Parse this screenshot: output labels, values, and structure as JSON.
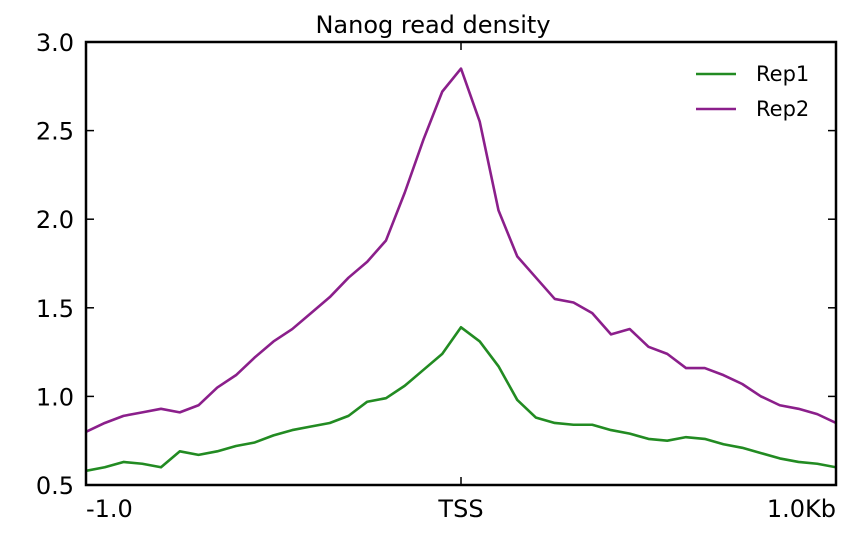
{
  "chart_data": {
    "type": "line",
    "title": "Nanog read density",
    "xlabel": "",
    "ylabel": "",
    "xlim": [
      -1.0,
      1.0
    ],
    "ylim": [
      0.5,
      3.0
    ],
    "x_ticks": [
      {
        "value": -1.0,
        "label": "-1.0"
      },
      {
        "value": 0.0,
        "label": "TSS"
      },
      {
        "value": 1.0,
        "label": "1.0Kb"
      }
    ],
    "y_ticks": [
      {
        "value": 0.5,
        "label": "0.5"
      },
      {
        "value": 1.0,
        "label": "1.0"
      },
      {
        "value": 1.5,
        "label": "1.5"
      },
      {
        "value": 2.0,
        "label": "2.0"
      },
      {
        "value": 2.5,
        "label": "2.5"
      },
      {
        "value": 3.0,
        "label": "3.0"
      }
    ],
    "grid": false,
    "legend_position": "top-right",
    "series": [
      {
        "name": "Rep1",
        "color": "#228b22",
        "x": [
          -1.0,
          -0.95,
          -0.9,
          -0.85,
          -0.8,
          -0.75,
          -0.7,
          -0.65,
          -0.6,
          -0.55,
          -0.5,
          -0.45,
          -0.4,
          -0.35,
          -0.3,
          -0.25,
          -0.2,
          -0.15,
          -0.1,
          -0.05,
          0.0,
          0.05,
          0.1,
          0.15,
          0.2,
          0.25,
          0.3,
          0.35,
          0.4,
          0.45,
          0.5,
          0.55,
          0.6,
          0.65,
          0.7,
          0.75,
          0.8,
          0.85,
          0.9,
          0.95,
          1.0
        ],
        "values": [
          0.58,
          0.6,
          0.63,
          0.62,
          0.6,
          0.69,
          0.67,
          0.69,
          0.72,
          0.74,
          0.78,
          0.81,
          0.83,
          0.85,
          0.89,
          0.97,
          0.99,
          1.06,
          1.15,
          1.24,
          1.39,
          1.31,
          1.17,
          0.98,
          0.88,
          0.85,
          0.84,
          0.84,
          0.81,
          0.79,
          0.76,
          0.75,
          0.77,
          0.76,
          0.73,
          0.71,
          0.68,
          0.65,
          0.63,
          0.62,
          0.6
        ]
      },
      {
        "name": "Rep2",
        "color": "#8b1f8b",
        "x": [
          -1.0,
          -0.95,
          -0.9,
          -0.85,
          -0.8,
          -0.75,
          -0.7,
          -0.65,
          -0.6,
          -0.55,
          -0.5,
          -0.45,
          -0.4,
          -0.35,
          -0.3,
          -0.25,
          -0.2,
          -0.15,
          -0.1,
          -0.05,
          0.0,
          0.05,
          0.1,
          0.15,
          0.2,
          0.25,
          0.3,
          0.35,
          0.4,
          0.45,
          0.5,
          0.55,
          0.6,
          0.65,
          0.7,
          0.75,
          0.8,
          0.85,
          0.9,
          0.95,
          1.0
        ],
        "values": [
          0.8,
          0.85,
          0.89,
          0.91,
          0.93,
          0.91,
          0.95,
          1.05,
          1.12,
          1.22,
          1.31,
          1.38,
          1.47,
          1.56,
          1.67,
          1.76,
          1.88,
          2.15,
          2.45,
          2.72,
          2.85,
          2.55,
          2.05,
          1.79,
          1.67,
          1.55,
          1.53,
          1.47,
          1.35,
          1.38,
          1.28,
          1.24,
          1.16,
          1.16,
          1.12,
          1.07,
          1.0,
          0.95,
          0.93,
          0.9,
          0.85
        ]
      }
    ]
  }
}
